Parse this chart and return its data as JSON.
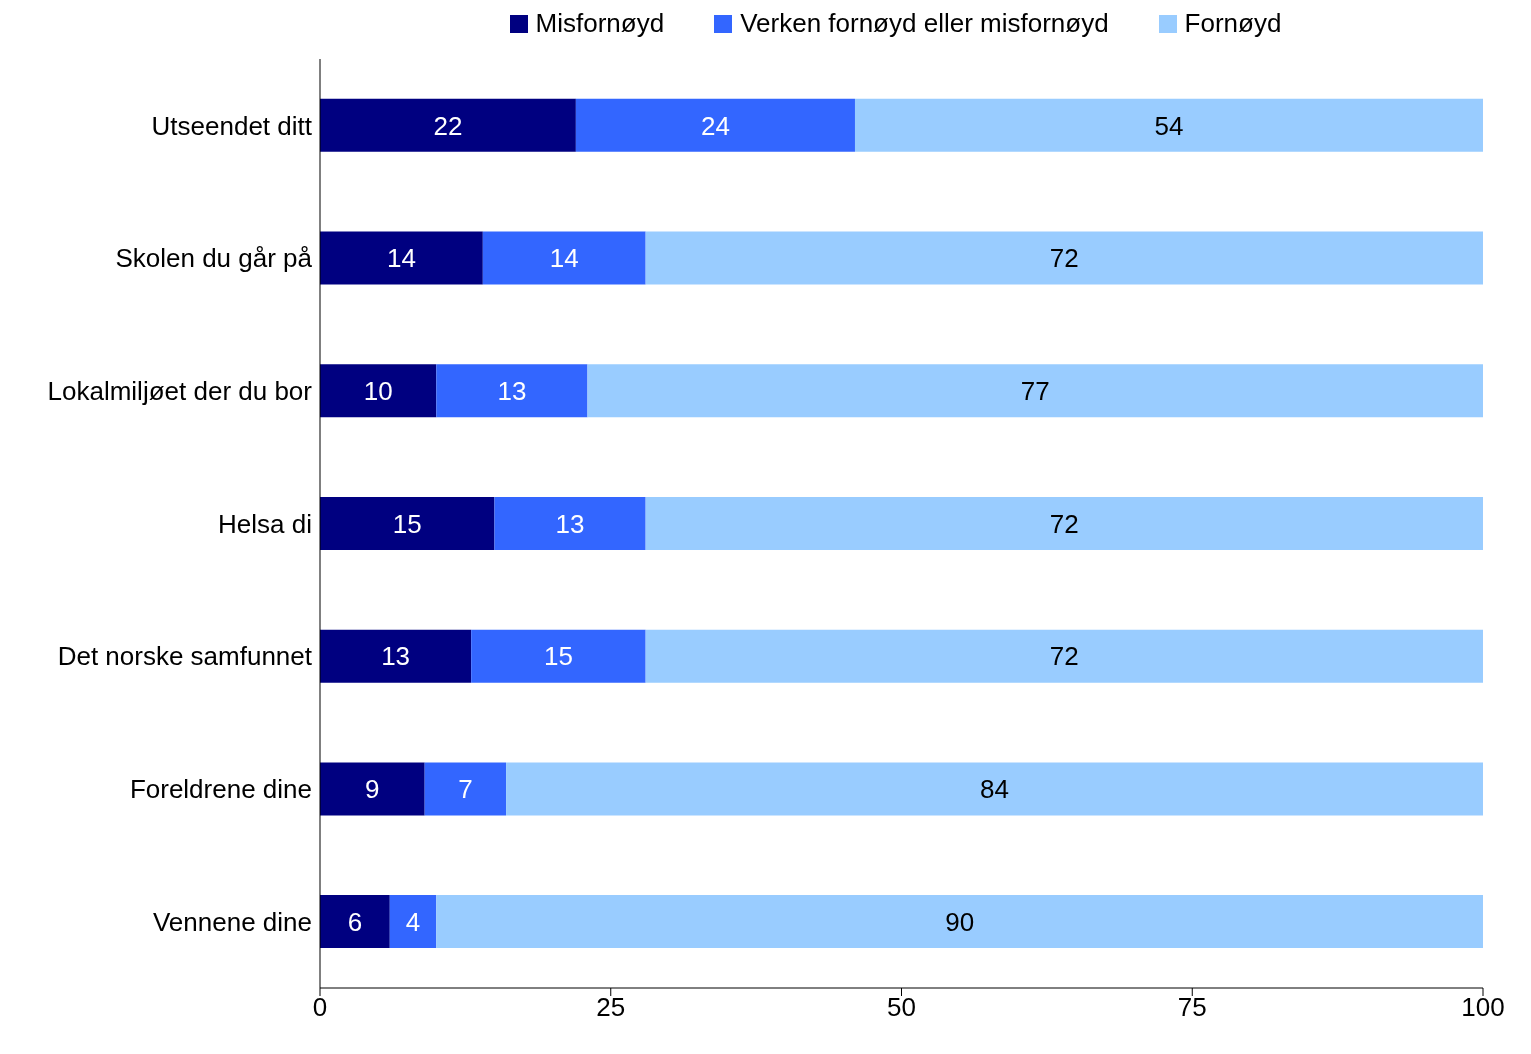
{
  "chart_data": {
    "type": "bar",
    "orientation": "horizontal",
    "stacked": true,
    "categories": [
      "Utseendet ditt",
      "Skolen du går på",
      "Lokalmiljøet der du bor",
      "Helsa di",
      "Det norske samfunnet",
      "Foreldrene dine",
      "Vennene dine"
    ],
    "series": [
      {
        "name": "Misfornøyd",
        "color": "#000080",
        "values": [
          22,
          14,
          10,
          15,
          13,
          9,
          6
        ]
      },
      {
        "name": "Verken fornøyd eller misfornøyd",
        "color": "#3366ff",
        "values": [
          24,
          14,
          13,
          13,
          15,
          7,
          4
        ]
      },
      {
        "name": "Fornøyd",
        "color": "#99ccff",
        "values": [
          54,
          72,
          77,
          72,
          72,
          84,
          90
        ]
      }
    ],
    "xlim": [
      0,
      100
    ],
    "xticks": [
      0,
      25,
      50,
      75,
      100
    ],
    "grid": false,
    "legend": "top",
    "data_labels": true
  }
}
